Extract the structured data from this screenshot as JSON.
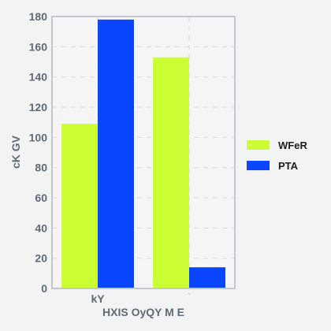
{
  "chart_data": {
    "type": "bar",
    "categories": [
      "kY",
      "⸌"
    ],
    "series": [
      {
        "name": "WFeR",
        "values": [
          109,
          153
        ],
        "color": "#ccff33"
      },
      {
        "name": "PTA",
        "values": [
          178,
          14
        ],
        "color": "#0a46ff"
      }
    ],
    "xlabel": "HXIS OyQY M E",
    "ylabel": "cK GV",
    "ylim": [
      0,
      180
    ],
    "yticks": [
      0,
      20,
      40,
      60,
      80,
      100,
      120,
      140,
      160,
      180
    ],
    "grid": true,
    "legend_position": "right"
  }
}
